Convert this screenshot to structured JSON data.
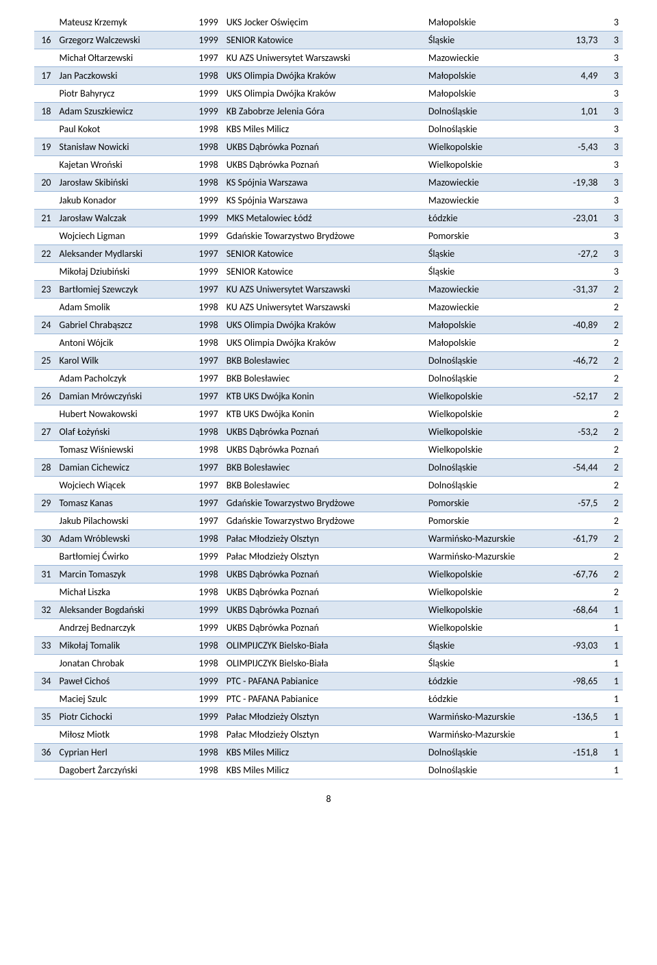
{
  "pageNumber": "8",
  "colors": {
    "shaded": "#dce6f1",
    "border": "#95b3d7",
    "text": "#000000",
    "bg": "#ffffff"
  },
  "rows": [
    {
      "shaded": false,
      "rank": "",
      "name": "Mateusz Krzemyk",
      "year": "1999",
      "club": "UKS Jocker Oświęcim",
      "region": "Małopolskie",
      "score": "",
      "pts": "3"
    },
    {
      "shaded": true,
      "rank": "16",
      "name": "Grzegorz Walczewski",
      "year": "1999",
      "club": "SENIOR Katowice",
      "region": "Śląskie",
      "score": "13,73",
      "pts": "3"
    },
    {
      "shaded": false,
      "rank": "",
      "name": "Michał Ołtarzewski",
      "year": "1997",
      "club": "KU AZS Uniwersytet Warszawski",
      "region": "Mazowieckie",
      "score": "",
      "pts": "3"
    },
    {
      "shaded": true,
      "rank": "17",
      "name": "Jan Paczkowski",
      "year": "1998",
      "club": "UKS Olimpia Dwójka Kraków",
      "region": "Małopolskie",
      "score": "4,49",
      "pts": "3"
    },
    {
      "shaded": false,
      "rank": "",
      "name": "Piotr Bahyrycz",
      "year": "1999",
      "club": "UKS Olimpia Dwójka Kraków",
      "region": "Małopolskie",
      "score": "",
      "pts": "3"
    },
    {
      "shaded": true,
      "rank": "18",
      "name": "Adam Szuszkiewicz",
      "year": "1999",
      "club": "KB Zabobrze Jelenia Góra",
      "region": "Dolnośląskie",
      "score": "1,01",
      "pts": "3"
    },
    {
      "shaded": false,
      "rank": "",
      "name": "Paul Kokot",
      "year": "1998",
      "club": "KBS Miles Milicz",
      "region": "Dolnośląskie",
      "score": "",
      "pts": "3"
    },
    {
      "shaded": true,
      "rank": "19",
      "name": "Stanisław Nowicki",
      "year": "1998",
      "club": "UKBS Dąbrówka Poznań",
      "region": "Wielkopolskie",
      "score": "-5,43",
      "pts": "3"
    },
    {
      "shaded": false,
      "rank": "",
      "name": "Kajetan Wroński",
      "year": "1998",
      "club": "UKBS Dąbrówka Poznań",
      "region": "Wielkopolskie",
      "score": "",
      "pts": "3"
    },
    {
      "shaded": true,
      "rank": "20",
      "name": "Jarosław Skibiński",
      "year": "1998",
      "club": "KS Spójnia Warszawa",
      "region": "Mazowieckie",
      "score": "-19,38",
      "pts": "3"
    },
    {
      "shaded": false,
      "rank": "",
      "name": "Jakub Konador",
      "year": "1999",
      "club": "KS Spójnia Warszawa",
      "region": "Mazowieckie",
      "score": "",
      "pts": "3"
    },
    {
      "shaded": true,
      "rank": "21",
      "name": "Jarosław Walczak",
      "year": "1999",
      "club": "MKS Metalowiec Łódź",
      "region": "Łódzkie",
      "score": "-23,01",
      "pts": "3"
    },
    {
      "shaded": false,
      "rank": "",
      "name": "Wojciech Ligman",
      "year": "1999",
      "club": "Gdańskie Towarzystwo Brydżowe",
      "region": "Pomorskie",
      "score": "",
      "pts": "3"
    },
    {
      "shaded": true,
      "rank": "22",
      "name": "Aleksander Mydlarski",
      "nameWrap": true,
      "year": "1997",
      "club": "SENIOR Katowice",
      "region": "Śląskie",
      "score": "-27,2",
      "pts": "3"
    },
    {
      "shaded": false,
      "rank": "",
      "name": "Mikołaj Dziubiński",
      "year": "1999",
      "club": "SENIOR Katowice",
      "region": "Śląskie",
      "score": "",
      "pts": "3"
    },
    {
      "shaded": true,
      "rank": "23",
      "name": "Bartłomiej Szewczyk",
      "year": "1997",
      "club": "KU AZS Uniwersytet Warszawski",
      "region": "Mazowieckie",
      "score": "-31,37",
      "pts": "2"
    },
    {
      "shaded": false,
      "rank": "",
      "name": "Adam Smolik",
      "year": "1998",
      "club": "KU AZS Uniwersytet Warszawski",
      "region": "Mazowieckie",
      "score": "",
      "pts": "2"
    },
    {
      "shaded": true,
      "rank": "24",
      "name": "Gabriel Chrabąszcz",
      "year": "1998",
      "club": "UKS Olimpia Dwójka Kraków",
      "region": "Małopolskie",
      "score": "-40,89",
      "pts": "2"
    },
    {
      "shaded": false,
      "rank": "",
      "name": "Antoni Wójcik",
      "year": "1998",
      "club": "UKS Olimpia Dwójka Kraków",
      "region": "Małopolskie",
      "score": "",
      "pts": "2"
    },
    {
      "shaded": true,
      "rank": "25",
      "name": "Karol Wilk",
      "year": "1997",
      "club": "BKB Bolesławiec",
      "region": "Dolnośląskie",
      "score": "-46,72",
      "pts": "2"
    },
    {
      "shaded": false,
      "rank": "",
      "name": "Adam Pacholczyk",
      "year": "1997",
      "club": "BKB Bolesławiec",
      "region": "Dolnośląskie",
      "score": "",
      "pts": "2"
    },
    {
      "shaded": true,
      "rank": "26",
      "name": "Damian Mrówczyński",
      "year": "1997",
      "club": "KTB UKS Dwójka Konin",
      "region": "Wielkopolskie",
      "score": "-52,17",
      "pts": "2"
    },
    {
      "shaded": false,
      "rank": "",
      "name": "Hubert Nowakowski",
      "year": "1997",
      "club": "KTB UKS Dwójka Konin",
      "region": "Wielkopolskie",
      "score": "",
      "pts": "2"
    },
    {
      "shaded": true,
      "rank": "27",
      "name": "Olaf Łożyński",
      "year": "1998",
      "club": "UKBS Dąbrówka Poznań",
      "region": "Wielkopolskie",
      "score": "-53,2",
      "pts": "2"
    },
    {
      "shaded": false,
      "rank": "",
      "name": "Tomasz Wiśniewski",
      "year": "1998",
      "club": "UKBS Dąbrówka Poznań",
      "region": "Wielkopolskie",
      "score": "",
      "pts": "2"
    },
    {
      "shaded": true,
      "rank": "28",
      "name": "Damian Cichewicz",
      "year": "1997",
      "club": "BKB Bolesławiec",
      "region": "Dolnośląskie",
      "score": "-54,44",
      "pts": "2"
    },
    {
      "shaded": false,
      "rank": "",
      "name": "Wojciech Wiącek",
      "year": "1997",
      "club": "BKB Bolesławiec",
      "region": "Dolnośląskie",
      "score": "",
      "pts": "2"
    },
    {
      "shaded": true,
      "rank": "29",
      "name": "Tomasz Kanas",
      "year": "1997",
      "club": "Gdańskie Towarzystwo Brydżowe",
      "region": "Pomorskie",
      "score": "-57,5",
      "pts": "2"
    },
    {
      "shaded": false,
      "rank": "",
      "name": "Jakub Pilachowski",
      "year": "1997",
      "club": "Gdańskie Towarzystwo Brydżowe",
      "region": "Pomorskie",
      "score": "",
      "pts": "2"
    },
    {
      "shaded": true,
      "rank": "30",
      "name": "Adam Wróblewski",
      "year": "1998",
      "club": "Pałac Młodzieży Olsztyn",
      "region": "Warmińsko-Mazurskie",
      "regionWrap": true,
      "score": "-61,79",
      "pts": "2"
    },
    {
      "shaded": false,
      "rank": "",
      "name": "Bartłomiej Ćwirko",
      "year": "1999",
      "club": "Pałac Młodzieży Olsztyn",
      "region": "Warmińsko-Mazurskie",
      "score": "",
      "pts": "2"
    },
    {
      "shaded": true,
      "rank": "31",
      "name": "Marcin Tomaszyk",
      "year": "1998",
      "club": "UKBS Dąbrówka Poznań",
      "region": "Wielkopolskie",
      "score": "-67,76",
      "pts": "2"
    },
    {
      "shaded": false,
      "rank": "",
      "name": "Michał Liszka",
      "year": "1998",
      "club": "UKBS Dąbrówka Poznań",
      "region": "Wielkopolskie",
      "score": "",
      "pts": "2"
    },
    {
      "shaded": true,
      "rank": "32",
      "name": "Aleksander Bogdański",
      "nameWrap": true,
      "year": "1999",
      "club": "UKBS Dąbrówka Poznań",
      "region": "Wielkopolskie",
      "score": "-68,64",
      "pts": "1"
    },
    {
      "shaded": false,
      "rank": "",
      "name": "Andrzej Bednarczyk",
      "year": "1999",
      "club": "UKBS Dąbrówka Poznań",
      "region": "Wielkopolskie",
      "score": "",
      "pts": "1"
    },
    {
      "shaded": true,
      "rank": "33",
      "name": "Mikołaj Tomalik",
      "year": "1998",
      "club": "OLIMPIJCZYK Bielsko-Biała",
      "region": "Śląskie",
      "score": "-93,03",
      "pts": "1"
    },
    {
      "shaded": false,
      "rank": "",
      "name": "Jonatan Chrobak",
      "year": "1998",
      "club": "OLIMPIJCZYK Bielsko-Biała",
      "region": "Śląskie",
      "score": "",
      "pts": "1"
    },
    {
      "shaded": true,
      "rank": "34",
      "name": "Paweł Cichoś",
      "year": "1999",
      "club": "PTC - PAFANA Pabianice",
      "region": "Łódzkie",
      "score": "-98,65",
      "pts": "1"
    },
    {
      "shaded": false,
      "rank": "",
      "name": "Maciej Szulc",
      "year": "1999",
      "club": "PTC - PAFANA Pabianice",
      "region": "Łódzkie",
      "score": "",
      "pts": "1"
    },
    {
      "shaded": true,
      "rank": "35",
      "name": "Piotr Cichocki",
      "year": "1999",
      "club": "Pałac Młodzieży Olsztyn",
      "region": "Warmińsko-Mazurskie",
      "regionWrap": true,
      "score": "-136,5",
      "pts": "1"
    },
    {
      "shaded": false,
      "rank": "",
      "name": "Miłosz Miotk",
      "year": "1998",
      "club": "Pałac Młodzieży Olsztyn",
      "region": "Warmińsko-Mazurskie",
      "score": "",
      "pts": "1"
    },
    {
      "shaded": true,
      "rank": "36",
      "name": "Cyprian Herl",
      "year": "1998",
      "club": "KBS Miles Milicz",
      "region": "Dolnośląskie",
      "score": "-151,8",
      "pts": "1"
    },
    {
      "shaded": false,
      "rank": "",
      "name": "Dagobert Żarczyński",
      "year": "1998",
      "club": "KBS Miles Milicz",
      "region": "Dolnośląskie",
      "score": "",
      "pts": "1"
    }
  ]
}
